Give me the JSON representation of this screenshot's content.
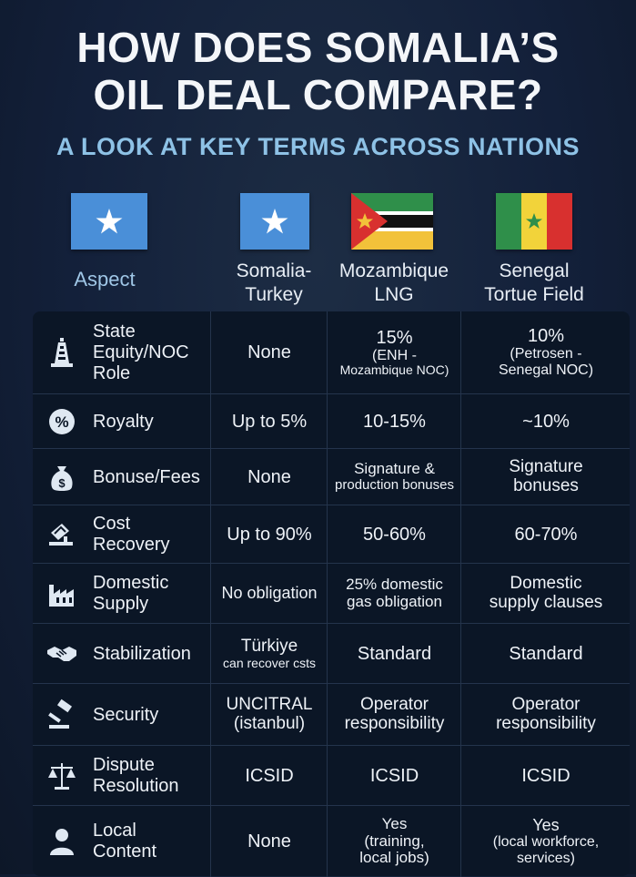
{
  "header": {
    "title_line1": "HOW DOES SOMALIA’S",
    "title_line2": "OIL DEAL COMPARE?",
    "subtitle": "A LOOK AT KEY TERMS ACROSS NATIONS"
  },
  "columns": {
    "aspect": "Aspect",
    "col1": [
      "Somalia-",
      "Turkey"
    ],
    "col2": [
      "Mozambique",
      "LNG"
    ],
    "col3": [
      "Senegal",
      "Tortue Field"
    ]
  },
  "flags": [
    "somalia-flag",
    "somalia-flag",
    "mozambique-flag",
    "senegal-flag"
  ],
  "colors": {
    "background": "#13203a",
    "accent": "#8ec2e6",
    "table": "#0b1626",
    "icon": "#dfe8f2"
  },
  "rows": [
    {
      "icon": "oil-derrick-icon",
      "aspect": [
        "State",
        "Equity/NOC",
        "Role"
      ],
      "c1": [
        "None"
      ],
      "c2": [
        "15%",
        "(ENH -",
        "Mozambique NOC)"
      ],
      "c3": [
        "10%",
        "(Petrosen -",
        "Senegal NOC)"
      ]
    },
    {
      "icon": "percent-icon",
      "aspect": [
        "Royalty"
      ],
      "c1": [
        "Up to 5%"
      ],
      "c2": [
        "10-15%"
      ],
      "c3": [
        "~10%"
      ]
    },
    {
      "icon": "money-bag-icon",
      "aspect": [
        "Bonuse/Fees"
      ],
      "c1": [
        "None"
      ],
      "c2": [
        "Signature &",
        "production bonuses"
      ],
      "c3": [
        "Signature",
        "bonuses"
      ]
    },
    {
      "icon": "cost-chart-icon",
      "aspect": [
        "Cost",
        "Recovery"
      ],
      "c1": [
        "Up to 90%"
      ],
      "c2": [
        "50-60%"
      ],
      "c3": [
        "60-70%"
      ]
    },
    {
      "icon": "factory-icon",
      "aspect": [
        "Domestic",
        "Supply"
      ],
      "c1": [
        "No obligation"
      ],
      "c2": [
        "25% domestic",
        "gas obligation"
      ],
      "c3": [
        "Domestic",
        "supply clauses"
      ]
    },
    {
      "icon": "handshake-icon",
      "aspect": [
        "Stabilization"
      ],
      "c1": [
        "Türkiye",
        "can recover csts"
      ],
      "c2": [
        "Standard"
      ],
      "c3": [
        "Standard"
      ]
    },
    {
      "icon": "gavel-icon",
      "aspect": [
        "Security"
      ],
      "c1": [
        "UNCITRAL",
        "(istanbul)"
      ],
      "c2": [
        "Operator",
        "responsibility"
      ],
      "c3": [
        "Operator",
        "responsibility"
      ]
    },
    {
      "icon": "scales-icon",
      "aspect": [
        "Dispute",
        "Resolution"
      ],
      "c1": [
        "ICSID"
      ],
      "c2": [
        "ICSID"
      ],
      "c3": [
        "ICSID"
      ]
    },
    {
      "icon": "person-icon",
      "aspect": [
        "Local",
        "Content"
      ],
      "c1": [
        "None"
      ],
      "c2": [
        "Yes",
        "(training,",
        "local jobs)"
      ],
      "c3": [
        "Yes",
        "(local workforce,",
        "services)"
      ]
    }
  ]
}
